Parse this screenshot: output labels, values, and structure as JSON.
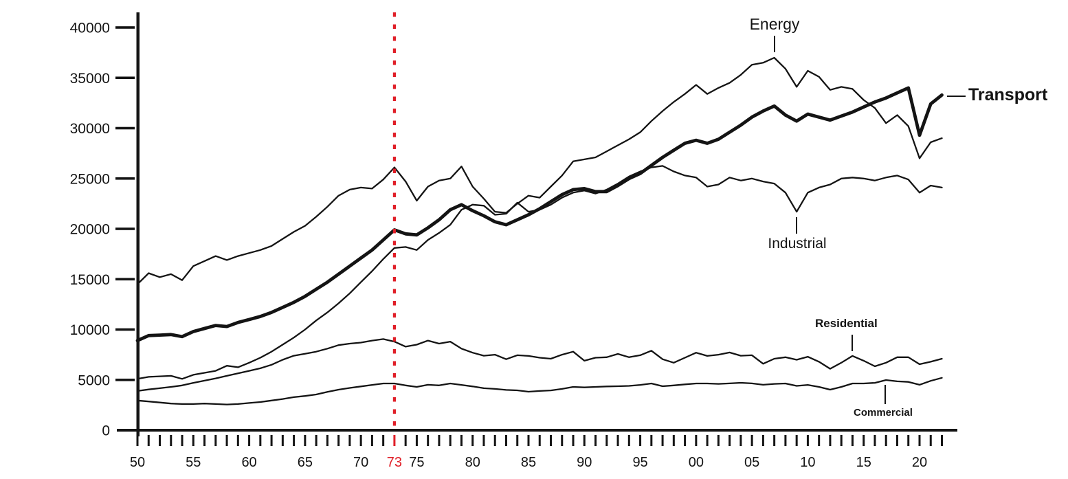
{
  "figure": {
    "colors": {
      "background": "#ffffff",
      "line": "#141414",
      "highlight_red": "#e01f28"
    }
  },
  "chart_data": {
    "type": "line",
    "title": "",
    "xlabel": "",
    "ylabel": "",
    "grid": false,
    "legend_position": "direct-labels-on-lines",
    "year_start": 1950,
    "year_end": 2022,
    "y_axis": {
      "min": 0,
      "max": 40000,
      "tick_interval": 5000,
      "tick_labels": [
        "0",
        "5000",
        "10000",
        "15000",
        "20000",
        "25000",
        "30000",
        "35000",
        "40000"
      ]
    },
    "x_axis": {
      "minor_tick_every_year": true,
      "ticks": [
        {
          "year": 1950,
          "label": "50",
          "highlight": false
        },
        {
          "year": 1955,
          "label": "55",
          "highlight": false
        },
        {
          "year": 1960,
          "label": "60",
          "highlight": false
        },
        {
          "year": 1965,
          "label": "65",
          "highlight": false
        },
        {
          "year": 1970,
          "label": "70",
          "highlight": false
        },
        {
          "year": 1973,
          "label": "73",
          "highlight": true
        },
        {
          "year": 1975,
          "label": "75",
          "highlight": false
        },
        {
          "year": 1980,
          "label": "80",
          "highlight": false
        },
        {
          "year": 1985,
          "label": "85",
          "highlight": false
        },
        {
          "year": 1990,
          "label": "90",
          "highlight": false
        },
        {
          "year": 1995,
          "label": "95",
          "highlight": false
        },
        {
          "year": 2000,
          "label": "00",
          "highlight": false
        },
        {
          "year": 2005,
          "label": "05",
          "highlight": false
        },
        {
          "year": 2010,
          "label": "10",
          "highlight": false
        },
        {
          "year": 2015,
          "label": "15",
          "highlight": false
        },
        {
          "year": 2020,
          "label": "20",
          "highlight": false
        }
      ]
    },
    "reference_line": {
      "year": 1973,
      "style": "dashed",
      "color": "#e01f28"
    },
    "series": [
      {
        "name": "Energy",
        "thickness": "thin",
        "values": [
          14500,
          15600,
          15200,
          15500,
          14900,
          16300,
          16800,
          17300,
          16900,
          17300,
          17600,
          17900,
          18300,
          19000,
          19700,
          20300,
          21200,
          22200,
          23300,
          23900,
          24100,
          24000,
          24900,
          26100,
          24700,
          22800,
          24200,
          24800,
          25000,
          26200,
          24200,
          23000,
          21700,
          21600,
          22500,
          23300,
          23100,
          24200,
          25300,
          26700,
          26900,
          27100,
          27700,
          28300,
          28900,
          29600,
          30700,
          31700,
          32600,
          33400,
          34300,
          33400,
          34000,
          34500,
          35300,
          36300,
          36500,
          37000,
          35900,
          34100,
          35700,
          35100,
          33800,
          34100,
          33900,
          32800,
          32000,
          30500,
          31300,
          30200,
          27000,
          28600,
          29000
        ]
      },
      {
        "name": "Industrial",
        "thickness": "thin",
        "values": [
          5100,
          5300,
          5350,
          5400,
          5100,
          5500,
          5700,
          5900,
          6400,
          6250,
          6700,
          7200,
          7800,
          8500,
          9200,
          10000,
          10900,
          11700,
          12600,
          13600,
          14700,
          15800,
          17000,
          18100,
          18200,
          17900,
          18900,
          19600,
          20400,
          21900,
          22400,
          22300,
          21400,
          21500,
          22600,
          21700,
          21900,
          22400,
          23100,
          23600,
          23800,
          23500,
          23900,
          24500,
          25200,
          25700,
          26100,
          26250,
          25700,
          25300,
          25100,
          24200,
          24400,
          25100,
          24800,
          25000,
          24700,
          24500,
          23600,
          21700,
          23600,
          24100,
          24400,
          25000,
          25100,
          25000,
          24800,
          25100,
          25300,
          24900,
          23600,
          24300,
          24100
        ]
      },
      {
        "name": "Residential",
        "thickness": "thin",
        "values": [
          3900,
          4050,
          4170,
          4300,
          4450,
          4700,
          4920,
          5150,
          5400,
          5650,
          5900,
          6150,
          6500,
          7000,
          7400,
          7600,
          7800,
          8100,
          8450,
          8600,
          8700,
          8900,
          9050,
          8800,
          8300,
          8500,
          8900,
          8600,
          8800,
          8100,
          7700,
          7400,
          7500,
          7050,
          7450,
          7380,
          7200,
          7100,
          7500,
          7800,
          6900,
          7200,
          7250,
          7580,
          7250,
          7450,
          7900,
          7050,
          6700,
          7200,
          7700,
          7380,
          7500,
          7720,
          7400,
          7450,
          6600,
          7100,
          7250,
          7000,
          7300,
          6800,
          6100,
          6700,
          7380,
          6900,
          6350,
          6700,
          7250,
          7250,
          6550,
          6800,
          7100
        ]
      },
      {
        "name": "Commercial",
        "thickness": "thin",
        "values": [
          2950,
          2850,
          2750,
          2650,
          2600,
          2600,
          2650,
          2600,
          2550,
          2600,
          2700,
          2800,
          2950,
          3100,
          3280,
          3400,
          3550,
          3800,
          4030,
          4200,
          4350,
          4500,
          4640,
          4640,
          4450,
          4300,
          4510,
          4450,
          4640,
          4500,
          4350,
          4170,
          4100,
          4000,
          3960,
          3820,
          3900,
          3950,
          4100,
          4300,
          4250,
          4300,
          4350,
          4370,
          4400,
          4500,
          4640,
          4370,
          4450,
          4550,
          4640,
          4640,
          4600,
          4650,
          4710,
          4650,
          4510,
          4600,
          4640,
          4400,
          4500,
          4300,
          4030,
          4300,
          4640,
          4640,
          4700,
          4980,
          4850,
          4800,
          4510,
          4900,
          5200
        ]
      },
      {
        "name": "Transport",
        "thickness": "thick",
        "values": [
          8900,
          9400,
          9450,
          9500,
          9300,
          9800,
          10100,
          10400,
          10300,
          10700,
          11000,
          11300,
          11700,
          12200,
          12700,
          13300,
          14000,
          14700,
          15500,
          16300,
          17100,
          17900,
          18900,
          19900,
          19500,
          19400,
          20100,
          20900,
          21900,
          22400,
          21800,
          21300,
          20700,
          20400,
          20900,
          21400,
          22000,
          22700,
          23400,
          23900,
          24000,
          23700,
          23700,
          24300,
          25000,
          25500,
          26300,
          27100,
          27800,
          28500,
          28800,
          28500,
          28900,
          29600,
          30300,
          31100,
          31700,
          32200,
          31300,
          30700,
          31400,
          31100,
          30800,
          31200,
          31600,
          32100,
          32600,
          33000,
          33500,
          34000,
          29300,
          32400,
          33300
        ]
      }
    ]
  }
}
